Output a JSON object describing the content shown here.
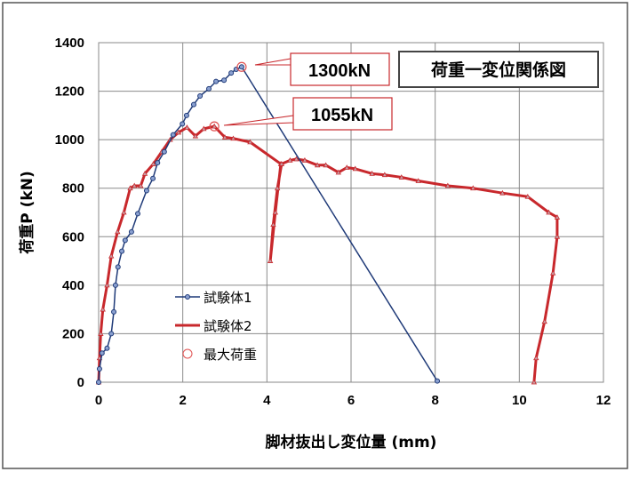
{
  "chart_data": {
    "type": "line",
    "title": "荷重一変位関係図",
    "xlabel": "脚材抜出し変位量 (mm)",
    "ylabel": "荷重P (kN)",
    "xlim": [
      0,
      12
    ],
    "ylim": [
      0,
      1400
    ],
    "xticks": [
      "0",
      "2",
      "4",
      "6",
      "8",
      "10",
      "12"
    ],
    "yticks": [
      "0",
      "200",
      "400",
      "600",
      "800",
      "1000",
      "1200",
      "1400"
    ],
    "grid": true,
    "legend_position": "lower-left-center",
    "series": [
      {
        "name": "試験体1",
        "color": "#1f3a78",
        "marker": "circle",
        "x": [
          0,
          0.02,
          0.08,
          0.2,
          0.3,
          0.36,
          0.4,
          0.46,
          0.55,
          0.63,
          0.78,
          0.93,
          1.14,
          1.29,
          1.4,
          1.56,
          1.77,
          1.99,
          2.09,
          2.26,
          2.41,
          2.62,
          2.79,
          2.98,
          3.15,
          3.27,
          3.4,
          8.05
        ],
        "y": [
          0,
          55,
          120,
          140,
          200,
          290,
          400,
          475,
          540,
          585,
          620,
          695,
          790,
          840,
          905,
          950,
          1020,
          1065,
          1100,
          1145,
          1180,
          1210,
          1240,
          1245,
          1275,
          1290,
          1300,
          5
        ]
      },
      {
        "name": "試験体2",
        "color": "#c8282c",
        "marker": "triangle",
        "x": [
          0,
          0.02,
          0.05,
          0.1,
          0.2,
          0.3,
          0.45,
          0.6,
          0.75,
          0.85,
          1.0,
          1.1,
          1.3,
          1.5,
          1.7,
          1.9,
          2.1,
          2.3,
          2.5,
          2.75,
          3.0,
          3.2,
          3.6,
          4.33,
          4.2,
          4.08,
          4.15,
          4.25,
          4.35,
          4.55,
          4.7,
          4.9,
          5.2,
          5.4,
          5.7,
          5.9,
          6.1,
          6.5,
          6.8,
          7.2,
          7.6,
          8.3,
          8.9,
          9.6,
          10.2,
          10.7,
          10.9,
          10.9,
          10.8,
          10.6,
          10.4,
          10.35
        ],
        "y": [
          0,
          100,
          200,
          300,
          400,
          520,
          620,
          700,
          800,
          810,
          810,
          860,
          900,
          950,
          1000,
          1030,
          1050,
          1015,
          1045,
          1055,
          1010,
          1005,
          990,
          900,
          700,
          500,
          650,
          800,
          900,
          915,
          920,
          915,
          895,
          895,
          865,
          885,
          880,
          860,
          855,
          845,
          830,
          810,
          800,
          780,
          765,
          700,
          680,
          600,
          450,
          250,
          100,
          0
        ]
      },
      {
        "name": "最大荷重",
        "color": "#e05050",
        "marker": "open-circle",
        "x": [
          3.4,
          2.75
        ],
        "y": [
          1300,
          1055
        ]
      }
    ],
    "annotations": [
      "1300kN",
      "1055kN"
    ]
  }
}
